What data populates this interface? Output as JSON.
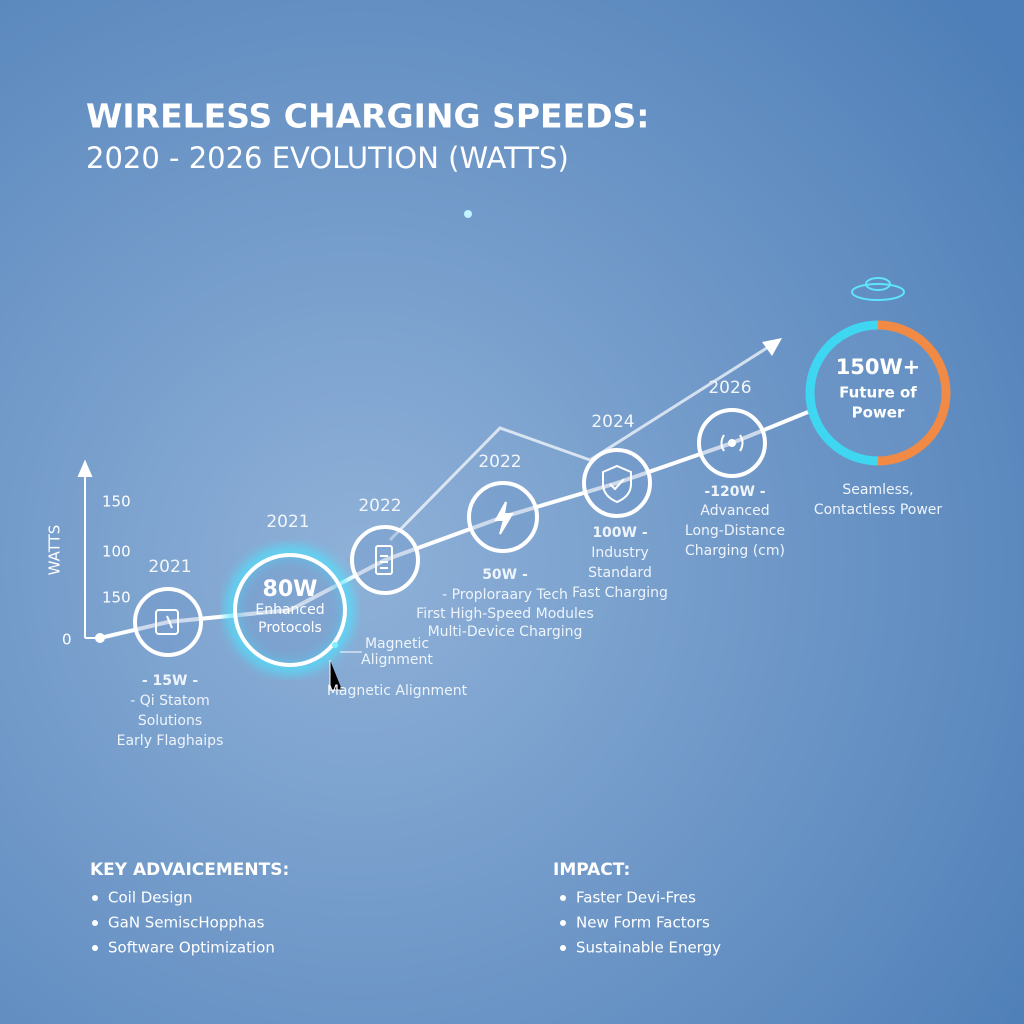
{
  "header": {
    "title": "WIRELESS CHARGING SPEEDS:",
    "subtitle": "2020 - 2026 EVOLUTION (WATTS)"
  },
  "axis": {
    "label": "WATTS",
    "ticks": [
      "150",
      "100",
      "150",
      "0"
    ]
  },
  "nodes": [
    {
      "year": "2021",
      "caption": [
        "- 15W -",
        "- Qi Statom",
        "Solutions",
        "Early Flaghaips"
      ]
    },
    {
      "year": "2021",
      "inner": [
        "80W",
        "Enhanced",
        "Protocols"
      ],
      "notes": [
        "Magnetic",
        "Alignment",
        "Magnetic Alignment"
      ]
    },
    {
      "year": "2022"
    },
    {
      "year": "2022",
      "caption": [
        "50W -",
        "- Proploraary Tech",
        "First High-Speed Modules",
        "Multi-Device Charging"
      ]
    },
    {
      "year": "2024",
      "caption": [
        "100W -",
        "Industry",
        "Standard",
        "Fast Charging"
      ]
    },
    {
      "year": "2026",
      "caption": [
        "-120W -",
        "Advanced",
        "Long-Distance",
        "Charging (cm)"
      ]
    },
    {
      "inner": [
        "150W+",
        "Future of",
        "Power"
      ],
      "caption": [
        "Seamless,",
        "Contactless Power"
      ]
    }
  ],
  "footer": {
    "left": {
      "heading": "KEY ADVAICEMENTS:",
      "items": [
        "Coil Design",
        "GaN SemiscHopphas",
        "Software Optimization"
      ]
    },
    "right": {
      "heading": "IMPACT:",
      "items": [
        "Faster Devi-Fres",
        "New Form Factors",
        "Sustainable Energy"
      ]
    }
  }
}
